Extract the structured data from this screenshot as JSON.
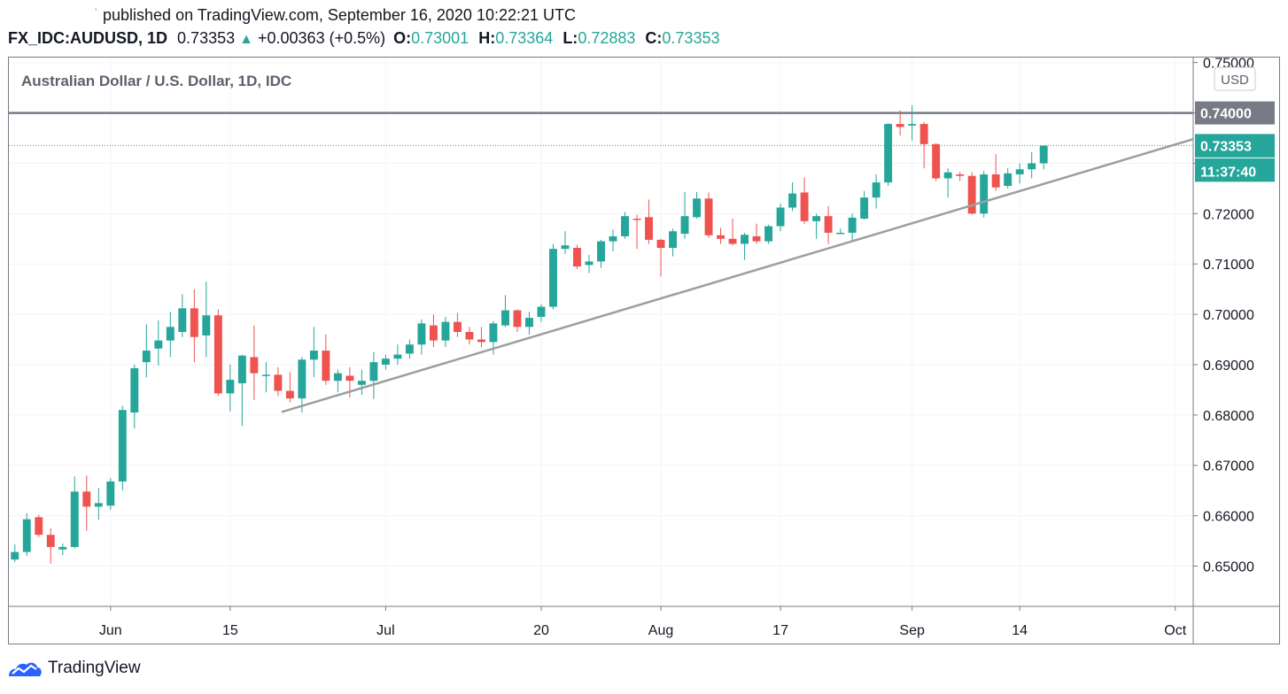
{
  "header": {
    "published": "published on TradingView.com, September 16, 2020 10:22:21 UTC",
    "symbol": "FX_IDC:AUDUSD, 1D",
    "last": "0.73353",
    "change": "+0.00363 (+0.5%)",
    "o_label": "O:",
    "o_value": "0.73001",
    "h_label": "H:",
    "h_value": "0.73364",
    "l_label": "L:",
    "l_value": "0.72883",
    "c_label": "C:",
    "c_value": "0.73353"
  },
  "footer": {
    "brand": "TradingView",
    "logo_icon": "tradingview-logo-icon"
  },
  "chart_data": {
    "type": "candlestick",
    "title": "Australian Dollar / U.S. Dollar, 1D, IDC",
    "currency_badge": "USD",
    "ylim": [
      0.642,
      0.751
    ],
    "y_ticks": [
      0.65,
      0.66,
      0.67,
      0.68,
      0.69,
      0.7,
      0.71,
      0.72,
      0.73,
      0.74,
      0.75
    ],
    "y_tick_labels": [
      "0.65000",
      "0.66000",
      "0.67000",
      "0.68000",
      "0.69000",
      "0.70000",
      "0.71000",
      "0.72000",
      "0.73000",
      "0.74000",
      "0.75000"
    ],
    "x_ticks": [
      {
        "label": "Jun",
        "day": 8
      },
      {
        "label": "15",
        "day": 18
      },
      {
        "label": "Jul",
        "day": 31
      },
      {
        "label": "20",
        "day": 44
      },
      {
        "label": "Aug",
        "day": 54
      },
      {
        "label": "17",
        "day": 64
      },
      {
        "label": "Sep",
        "day": 75
      },
      {
        "label": "14",
        "day": 84
      },
      {
        "label": "Oct",
        "day": 97
      }
    ],
    "x_range": [
      -0.5,
      98.5
    ],
    "candles": [
      {
        "day": 0,
        "o": 0.6513,
        "h": 0.6543,
        "l": 0.6508,
        "c": 0.6528
      },
      {
        "day": 1,
        "o": 0.6528,
        "h": 0.6605,
        "l": 0.652,
        "c": 0.6593
      },
      {
        "day": 2,
        "o": 0.6597,
        "h": 0.6602,
        "l": 0.6558,
        "c": 0.6562
      },
      {
        "day": 3,
        "o": 0.6562,
        "h": 0.6575,
        "l": 0.6505,
        "c": 0.6538
      },
      {
        "day": 4,
        "o": 0.6533,
        "h": 0.6545,
        "l": 0.6522,
        "c": 0.6538
      },
      {
        "day": 5,
        "o": 0.6538,
        "h": 0.6678,
        "l": 0.6535,
        "c": 0.6648
      },
      {
        "day": 6,
        "o": 0.6648,
        "h": 0.668,
        "l": 0.657,
        "c": 0.6618
      },
      {
        "day": 7,
        "o": 0.6618,
        "h": 0.6655,
        "l": 0.6592,
        "c": 0.6625
      },
      {
        "day": 8,
        "o": 0.662,
        "h": 0.6675,
        "l": 0.6612,
        "c": 0.6668
      },
      {
        "day": 9,
        "o": 0.6668,
        "h": 0.6818,
        "l": 0.665,
        "c": 0.681
      },
      {
        "day": 10,
        "o": 0.6805,
        "h": 0.69,
        "l": 0.6773,
        "c": 0.6893
      },
      {
        "day": 11,
        "o": 0.6905,
        "h": 0.698,
        "l": 0.6875,
        "c": 0.6928
      },
      {
        "day": 12,
        "o": 0.6932,
        "h": 0.6988,
        "l": 0.6898,
        "c": 0.6948
      },
      {
        "day": 13,
        "o": 0.6948,
        "h": 0.7005,
        "l": 0.6915,
        "c": 0.6975
      },
      {
        "day": 14,
        "o": 0.6965,
        "h": 0.704,
        "l": 0.6955,
        "c": 0.7012
      },
      {
        "day": 15,
        "o": 0.7012,
        "h": 0.705,
        "l": 0.6905,
        "c": 0.6955
      },
      {
        "day": 16,
        "o": 0.6958,
        "h": 0.7065,
        "l": 0.6915,
        "c": 0.6998
      },
      {
        "day": 17,
        "o": 0.6998,
        "h": 0.701,
        "l": 0.6838,
        "c": 0.6843
      },
      {
        "day": 18,
        "o": 0.6843,
        "h": 0.69,
        "l": 0.6807,
        "c": 0.687
      },
      {
        "day": 19,
        "o": 0.6863,
        "h": 0.692,
        "l": 0.6778,
        "c": 0.6918
      },
      {
        "day": 20,
        "o": 0.6915,
        "h": 0.6978,
        "l": 0.683,
        "c": 0.6883
      },
      {
        "day": 21,
        "o": 0.688,
        "h": 0.6905,
        "l": 0.6845,
        "c": 0.688
      },
      {
        "day": 22,
        "o": 0.688,
        "h": 0.6895,
        "l": 0.6838,
        "c": 0.6848
      },
      {
        "day": 23,
        "o": 0.6848,
        "h": 0.6885,
        "l": 0.6825,
        "c": 0.6833
      },
      {
        "day": 24,
        "o": 0.6833,
        "h": 0.6915,
        "l": 0.6805,
        "c": 0.691
      },
      {
        "day": 25,
        "o": 0.691,
        "h": 0.6975,
        "l": 0.6875,
        "c": 0.6928
      },
      {
        "day": 26,
        "o": 0.6928,
        "h": 0.696,
        "l": 0.686,
        "c": 0.6868
      },
      {
        "day": 27,
        "o": 0.6868,
        "h": 0.689,
        "l": 0.6845,
        "c": 0.6883
      },
      {
        "day": 28,
        "o": 0.6878,
        "h": 0.6895,
        "l": 0.6835,
        "c": 0.6868
      },
      {
        "day": 29,
        "o": 0.686,
        "h": 0.689,
        "l": 0.684,
        "c": 0.6868
      },
      {
        "day": 30,
        "o": 0.6868,
        "h": 0.6925,
        "l": 0.6832,
        "c": 0.6905
      },
      {
        "day": 31,
        "o": 0.69,
        "h": 0.692,
        "l": 0.689,
        "c": 0.6912
      },
      {
        "day": 32,
        "o": 0.6912,
        "h": 0.694,
        "l": 0.69,
        "c": 0.692
      },
      {
        "day": 33,
        "o": 0.6922,
        "h": 0.695,
        "l": 0.6912,
        "c": 0.694
      },
      {
        "day": 34,
        "o": 0.694,
        "h": 0.699,
        "l": 0.692,
        "c": 0.6982
      },
      {
        "day": 35,
        "o": 0.6978,
        "h": 0.7,
        "l": 0.6935,
        "c": 0.6948
      },
      {
        "day": 36,
        "o": 0.6948,
        "h": 0.6995,
        "l": 0.6935,
        "c": 0.6985
      },
      {
        "day": 37,
        "o": 0.6985,
        "h": 0.7003,
        "l": 0.6955,
        "c": 0.6965
      },
      {
        "day": 38,
        "o": 0.6965,
        "h": 0.6975,
        "l": 0.694,
        "c": 0.695
      },
      {
        "day": 39,
        "o": 0.695,
        "h": 0.6975,
        "l": 0.6935,
        "c": 0.6945
      },
      {
        "day": 40,
        "o": 0.6945,
        "h": 0.6987,
        "l": 0.692,
        "c": 0.6982
      },
      {
        "day": 41,
        "o": 0.6978,
        "h": 0.7038,
        "l": 0.6975,
        "c": 0.7008
      },
      {
        "day": 42,
        "o": 0.7008,
        "h": 0.701,
        "l": 0.6965,
        "c": 0.6975
      },
      {
        "day": 43,
        "o": 0.6975,
        "h": 0.7005,
        "l": 0.696,
        "c": 0.6993
      },
      {
        "day": 44,
        "o": 0.6995,
        "h": 0.702,
        "l": 0.6985,
        "c": 0.7015
      },
      {
        "day": 45,
        "o": 0.7015,
        "h": 0.714,
        "l": 0.701,
        "c": 0.713
      },
      {
        "day": 46,
        "o": 0.713,
        "h": 0.7165,
        "l": 0.712,
        "c": 0.7137
      },
      {
        "day": 47,
        "o": 0.7132,
        "h": 0.7138,
        "l": 0.709,
        "c": 0.7095
      },
      {
        "day": 48,
        "o": 0.7098,
        "h": 0.7118,
        "l": 0.7082,
        "c": 0.7105
      },
      {
        "day": 49,
        "o": 0.7105,
        "h": 0.7148,
        "l": 0.7092,
        "c": 0.7145
      },
      {
        "day": 50,
        "o": 0.7145,
        "h": 0.7168,
        "l": 0.7125,
        "c": 0.7155
      },
      {
        "day": 51,
        "o": 0.7155,
        "h": 0.7203,
        "l": 0.715,
        "c": 0.7195
      },
      {
        "day": 52,
        "o": 0.719,
        "h": 0.7198,
        "l": 0.713,
        "c": 0.7188
      },
      {
        "day": 53,
        "o": 0.7193,
        "h": 0.7228,
        "l": 0.714,
        "c": 0.7148
      },
      {
        "day": 54,
        "o": 0.7148,
        "h": 0.715,
        "l": 0.7075,
        "c": 0.7132
      },
      {
        "day": 55,
        "o": 0.7132,
        "h": 0.717,
        "l": 0.7115,
        "c": 0.7165
      },
      {
        "day": 56,
        "o": 0.716,
        "h": 0.7243,
        "l": 0.715,
        "c": 0.7195
      },
      {
        "day": 57,
        "o": 0.7193,
        "h": 0.7243,
        "l": 0.719,
        "c": 0.723
      },
      {
        "day": 58,
        "o": 0.723,
        "h": 0.7242,
        "l": 0.7152,
        "c": 0.7157
      },
      {
        "day": 59,
        "o": 0.7157,
        "h": 0.7172,
        "l": 0.714,
        "c": 0.715
      },
      {
        "day": 60,
        "o": 0.715,
        "h": 0.719,
        "l": 0.7137,
        "c": 0.714
      },
      {
        "day": 61,
        "o": 0.714,
        "h": 0.7162,
        "l": 0.7108,
        "c": 0.7158
      },
      {
        "day": 62,
        "o": 0.7155,
        "h": 0.718,
        "l": 0.714,
        "c": 0.7145
      },
      {
        "day": 63,
        "o": 0.7145,
        "h": 0.7178,
        "l": 0.714,
        "c": 0.7175
      },
      {
        "day": 64,
        "o": 0.7175,
        "h": 0.722,
        "l": 0.7165,
        "c": 0.7212
      },
      {
        "day": 65,
        "o": 0.7212,
        "h": 0.7262,
        "l": 0.7205,
        "c": 0.724
      },
      {
        "day": 66,
        "o": 0.7242,
        "h": 0.7272,
        "l": 0.718,
        "c": 0.7185
      },
      {
        "day": 67,
        "o": 0.7185,
        "h": 0.72,
        "l": 0.715,
        "c": 0.7195
      },
      {
        "day": 68,
        "o": 0.7195,
        "h": 0.7215,
        "l": 0.714,
        "c": 0.7162
      },
      {
        "day": 69,
        "o": 0.7162,
        "h": 0.717,
        "l": 0.716,
        "c": 0.7162
      },
      {
        "day": 70,
        "o": 0.7162,
        "h": 0.72,
        "l": 0.7145,
        "c": 0.7192
      },
      {
        "day": 71,
        "o": 0.719,
        "h": 0.7245,
        "l": 0.7188,
        "c": 0.7232
      },
      {
        "day": 72,
        "o": 0.7232,
        "h": 0.7278,
        "l": 0.721,
        "c": 0.7262
      },
      {
        "day": 73,
        "o": 0.7262,
        "h": 0.738,
        "l": 0.7255,
        "c": 0.7378
      },
      {
        "day": 74,
        "o": 0.7378,
        "h": 0.7405,
        "l": 0.7355,
        "c": 0.7372
      },
      {
        "day": 75,
        "o": 0.7375,
        "h": 0.7415,
        "l": 0.7345,
        "c": 0.7378
      },
      {
        "day": 76,
        "o": 0.7378,
        "h": 0.7382,
        "l": 0.729,
        "c": 0.7338
      },
      {
        "day": 77,
        "o": 0.7338,
        "h": 0.734,
        "l": 0.7265,
        "c": 0.727
      },
      {
        "day": 78,
        "o": 0.727,
        "h": 0.729,
        "l": 0.7232,
        "c": 0.7282
      },
      {
        "day": 79,
        "o": 0.7278,
        "h": 0.7283,
        "l": 0.7265,
        "c": 0.7275
      },
      {
        "day": 80,
        "o": 0.7275,
        "h": 0.7282,
        "l": 0.7198,
        "c": 0.72
      },
      {
        "day": 81,
        "o": 0.72,
        "h": 0.7285,
        "l": 0.7192,
        "c": 0.7278
      },
      {
        "day": 82,
        "o": 0.7278,
        "h": 0.7318,
        "l": 0.7245,
        "c": 0.7252
      },
      {
        "day": 83,
        "o": 0.7255,
        "h": 0.729,
        "l": 0.725,
        "c": 0.728
      },
      {
        "day": 84,
        "o": 0.7278,
        "h": 0.73,
        "l": 0.726,
        "c": 0.7288
      },
      {
        "day": 85,
        "o": 0.7288,
        "h": 0.7322,
        "l": 0.727,
        "c": 0.73
      },
      {
        "day": 86,
        "o": 0.73,
        "h": 0.7336,
        "l": 0.7288,
        "c": 0.7335
      }
    ],
    "resistance_level": 0.74,
    "resistance_label": "0.74000",
    "trendline": {
      "start_day": 22.3,
      "start_price": 0.6806,
      "end_day": 98.5,
      "end_price": 0.7348
    },
    "last_price": 0.73353,
    "last_price_label": "0.73353",
    "countdown": "11:37:40",
    "colors": {
      "up": "#26a69a",
      "down": "#ef5350",
      "trendline": "#9e9e9e",
      "level": "#787b86",
      "grid": "#f0f3fa"
    }
  }
}
